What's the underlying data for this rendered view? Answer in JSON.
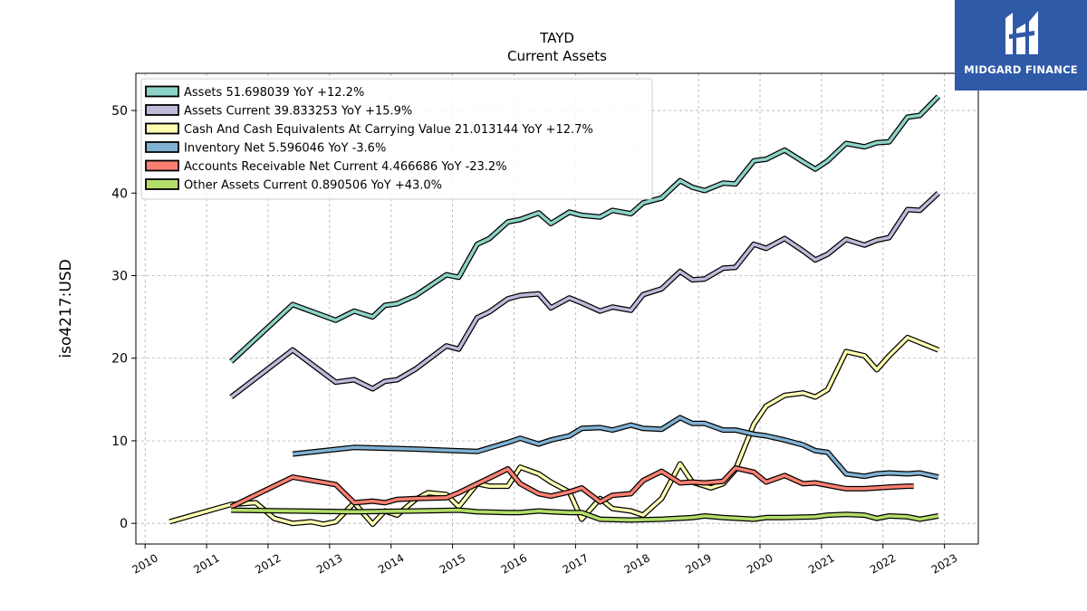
{
  "chart_data": {
    "type": "line",
    "title": "TAYD",
    "subtitle": "Current  Assets",
    "ylabel": "iso4217:USD",
    "xlim": [
      2009.85,
      2023.55
    ],
    "ylim": [
      -2.5,
      54.5
    ],
    "yticks": [
      0,
      10,
      20,
      30,
      40,
      50
    ],
    "xticks": [
      "2010",
      "2011",
      "2012",
      "2013",
      "2014",
      "2015",
      "2016",
      "2017",
      "2018",
      "2019",
      "2020",
      "2021",
      "2022",
      "2023"
    ],
    "grid": true,
    "legend_position": "top-left",
    "series": [
      {
        "name": "Assets",
        "legend": "Assets  51.698039 YoY +12.2%",
        "color": "#8dd3c7",
        "points": [
          [
            2011.4,
            19.6
          ],
          [
            2012.4,
            26.5
          ],
          [
            2013.1,
            24.6
          ],
          [
            2013.4,
            25.7
          ],
          [
            2013.7,
            25.0
          ],
          [
            2013.9,
            26.4
          ],
          [
            2014.1,
            26.6
          ],
          [
            2014.4,
            27.6
          ],
          [
            2014.9,
            30.1
          ],
          [
            2015.1,
            29.8
          ],
          [
            2015.4,
            33.8
          ],
          [
            2015.6,
            34.5
          ],
          [
            2015.9,
            36.5
          ],
          [
            2016.1,
            36.8
          ],
          [
            2016.4,
            37.6
          ],
          [
            2016.6,
            36.3
          ],
          [
            2016.9,
            37.7
          ],
          [
            2017.1,
            37.3
          ],
          [
            2017.4,
            37.1
          ],
          [
            2017.6,
            37.9
          ],
          [
            2017.9,
            37.5
          ],
          [
            2018.1,
            38.8
          ],
          [
            2018.4,
            39.4
          ],
          [
            2018.7,
            41.5
          ],
          [
            2018.9,
            40.7
          ],
          [
            2019.1,
            40.3
          ],
          [
            2019.4,
            41.2
          ],
          [
            2019.6,
            41.1
          ],
          [
            2019.9,
            43.9
          ],
          [
            2020.1,
            44.1
          ],
          [
            2020.4,
            45.2
          ],
          [
            2020.7,
            43.8
          ],
          [
            2020.9,
            42.9
          ],
          [
            2021.1,
            43.9
          ],
          [
            2021.4,
            46.0
          ],
          [
            2021.7,
            45.6
          ],
          [
            2021.9,
            46.1
          ],
          [
            2022.1,
            46.2
          ],
          [
            2022.4,
            49.2
          ],
          [
            2022.6,
            49.4
          ],
          [
            2022.9,
            51.7
          ]
        ]
      },
      {
        "name": "Assets Current",
        "legend": "Assets Current  39.833253 YoY +15.9%",
        "color": "#bebada",
        "points": [
          [
            2011.4,
            15.3
          ],
          [
            2012.4,
            21.0
          ],
          [
            2013.1,
            17.1
          ],
          [
            2013.4,
            17.4
          ],
          [
            2013.7,
            16.3
          ],
          [
            2013.9,
            17.2
          ],
          [
            2014.1,
            17.4
          ],
          [
            2014.4,
            18.7
          ],
          [
            2014.9,
            21.5
          ],
          [
            2015.1,
            21.1
          ],
          [
            2015.4,
            24.9
          ],
          [
            2015.6,
            25.6
          ],
          [
            2015.9,
            27.2
          ],
          [
            2016.1,
            27.6
          ],
          [
            2016.4,
            27.8
          ],
          [
            2016.6,
            26.1
          ],
          [
            2016.9,
            27.3
          ],
          [
            2017.1,
            26.7
          ],
          [
            2017.4,
            25.7
          ],
          [
            2017.6,
            26.2
          ],
          [
            2017.9,
            25.8
          ],
          [
            2018.1,
            27.7
          ],
          [
            2018.4,
            28.4
          ],
          [
            2018.7,
            30.5
          ],
          [
            2018.9,
            29.5
          ],
          [
            2019.1,
            29.6
          ],
          [
            2019.4,
            30.9
          ],
          [
            2019.6,
            31.0
          ],
          [
            2019.9,
            33.8
          ],
          [
            2020.1,
            33.3
          ],
          [
            2020.4,
            34.5
          ],
          [
            2020.7,
            33.0
          ],
          [
            2020.9,
            31.9
          ],
          [
            2021.1,
            32.6
          ],
          [
            2021.4,
            34.4
          ],
          [
            2021.7,
            33.7
          ],
          [
            2021.9,
            34.3
          ],
          [
            2022.1,
            34.6
          ],
          [
            2022.4,
            38.0
          ],
          [
            2022.6,
            37.9
          ],
          [
            2022.9,
            40.0
          ]
        ]
      },
      {
        "name": "Cash And Cash Equivalents At Carrying Value",
        "legend": "Cash And Cash Equivalents At Carrying Value  21.013144 YoY +12.7%",
        "color": "#ffffb3",
        "points": [
          [
            2010.4,
            0.2
          ],
          [
            2011.4,
            2.3
          ],
          [
            2011.8,
            2.5
          ],
          [
            2012.1,
            0.6
          ],
          [
            2012.4,
            0.0
          ],
          [
            2012.7,
            0.2
          ],
          [
            2012.9,
            -0.1
          ],
          [
            2013.1,
            0.2
          ],
          [
            2013.4,
            2.5
          ],
          [
            2013.7,
            -0.1
          ],
          [
            2013.9,
            1.5
          ],
          [
            2014.1,
            1.0
          ],
          [
            2014.4,
            2.9
          ],
          [
            2014.6,
            3.7
          ],
          [
            2014.9,
            3.5
          ],
          [
            2015.1,
            2.0
          ],
          [
            2015.4,
            4.8
          ],
          [
            2015.6,
            4.5
          ],
          [
            2015.9,
            4.5
          ],
          [
            2016.1,
            6.8
          ],
          [
            2016.4,
            6.0
          ],
          [
            2016.6,
            5.0
          ],
          [
            2016.9,
            3.8
          ],
          [
            2017.1,
            0.5
          ],
          [
            2017.4,
            3.0
          ],
          [
            2017.6,
            1.8
          ],
          [
            2017.9,
            1.5
          ],
          [
            2018.1,
            1.0
          ],
          [
            2018.4,
            3.0
          ],
          [
            2018.7,
            7.2
          ],
          [
            2018.9,
            5.0
          ],
          [
            2019.2,
            4.3
          ],
          [
            2019.4,
            4.8
          ],
          [
            2019.6,
            6.5
          ],
          [
            2019.9,
            12.0
          ],
          [
            2020.1,
            14.2
          ],
          [
            2020.4,
            15.5
          ],
          [
            2020.7,
            15.8
          ],
          [
            2020.9,
            15.3
          ],
          [
            2021.1,
            16.2
          ],
          [
            2021.4,
            20.8
          ],
          [
            2021.7,
            20.3
          ],
          [
            2021.9,
            18.6
          ],
          [
            2022.1,
            20.3
          ],
          [
            2022.4,
            22.5
          ],
          [
            2022.6,
            21.9
          ],
          [
            2022.9,
            21.0
          ]
        ]
      },
      {
        "name": "Inventory Net",
        "legend": "Inventory Net  5.596046 YoY -3.6%",
        "color": "#80b1d3",
        "points": [
          [
            2012.4,
            8.4
          ],
          [
            2013.4,
            9.2
          ],
          [
            2014.4,
            9.0
          ],
          [
            2015.4,
            8.7
          ],
          [
            2015.9,
            9.8
          ],
          [
            2016.1,
            10.3
          ],
          [
            2016.4,
            9.6
          ],
          [
            2016.6,
            10.1
          ],
          [
            2016.9,
            10.6
          ],
          [
            2017.1,
            11.5
          ],
          [
            2017.4,
            11.6
          ],
          [
            2017.6,
            11.3
          ],
          [
            2017.9,
            11.9
          ],
          [
            2018.1,
            11.5
          ],
          [
            2018.4,
            11.4
          ],
          [
            2018.7,
            12.8
          ],
          [
            2018.9,
            12.1
          ],
          [
            2019.1,
            12.1
          ],
          [
            2019.4,
            11.3
          ],
          [
            2019.6,
            11.3
          ],
          [
            2019.9,
            10.8
          ],
          [
            2020.1,
            10.6
          ],
          [
            2020.4,
            10.1
          ],
          [
            2020.7,
            9.5
          ],
          [
            2020.9,
            8.8
          ],
          [
            2021.1,
            8.6
          ],
          [
            2021.4,
            6.0
          ],
          [
            2021.7,
            5.7
          ],
          [
            2021.9,
            6.0
          ],
          [
            2022.1,
            6.1
          ],
          [
            2022.4,
            6.0
          ],
          [
            2022.6,
            6.1
          ],
          [
            2022.9,
            5.6
          ]
        ]
      },
      {
        "name": "Accounts Receivable Net Current",
        "legend": "Accounts Receivable Net Current  4.466686 YoY -23.2%",
        "color": "#fb8072",
        "points": [
          [
            2011.4,
            2.0
          ],
          [
            2012.4,
            5.6
          ],
          [
            2013.1,
            4.7
          ],
          [
            2013.4,
            2.5
          ],
          [
            2013.7,
            2.7
          ],
          [
            2013.9,
            2.5
          ],
          [
            2014.1,
            2.9
          ],
          [
            2014.4,
            3.0
          ],
          [
            2014.9,
            3.1
          ],
          [
            2015.1,
            3.7
          ],
          [
            2015.4,
            4.8
          ],
          [
            2015.6,
            5.5
          ],
          [
            2015.9,
            6.6
          ],
          [
            2016.1,
            4.8
          ],
          [
            2016.4,
            3.6
          ],
          [
            2016.6,
            3.3
          ],
          [
            2016.9,
            3.8
          ],
          [
            2017.1,
            4.3
          ],
          [
            2017.4,
            2.6
          ],
          [
            2017.6,
            3.4
          ],
          [
            2017.9,
            3.6
          ],
          [
            2018.1,
            5.2
          ],
          [
            2018.4,
            6.3
          ],
          [
            2018.7,
            4.9
          ],
          [
            2018.9,
            5.0
          ],
          [
            2019.1,
            4.9
          ],
          [
            2019.4,
            5.1
          ],
          [
            2019.6,
            6.7
          ],
          [
            2019.9,
            6.2
          ],
          [
            2020.1,
            5.0
          ],
          [
            2020.4,
            5.8
          ],
          [
            2020.7,
            4.8
          ],
          [
            2020.9,
            4.9
          ],
          [
            2021.1,
            4.6
          ],
          [
            2021.4,
            4.2
          ],
          [
            2021.7,
            4.2
          ],
          [
            2021.9,
            4.3
          ],
          [
            2022.1,
            4.4
          ],
          [
            2022.4,
            4.5
          ],
          [
            2022.5,
            4.5
          ]
        ]
      },
      {
        "name": "Other Assets Current",
        "legend": "Other Assets Current  0.890506 YoY +43.0%",
        "color": "#b3de69",
        "points": [
          [
            2011.4,
            1.6
          ],
          [
            2012.4,
            1.5
          ],
          [
            2013.4,
            1.4
          ],
          [
            2014.4,
            1.5
          ],
          [
            2015.1,
            1.6
          ],
          [
            2015.4,
            1.4
          ],
          [
            2015.9,
            1.3
          ],
          [
            2016.1,
            1.3
          ],
          [
            2016.4,
            1.5
          ],
          [
            2016.6,
            1.4
          ],
          [
            2016.9,
            1.3
          ],
          [
            2017.1,
            1.3
          ],
          [
            2017.4,
            0.5
          ],
          [
            2017.9,
            0.4
          ],
          [
            2018.4,
            0.5
          ],
          [
            2018.9,
            0.7
          ],
          [
            2019.1,
            0.9
          ],
          [
            2019.4,
            0.7
          ],
          [
            2019.9,
            0.5
          ],
          [
            2020.1,
            0.7
          ],
          [
            2020.4,
            0.7
          ],
          [
            2020.9,
            0.8
          ],
          [
            2021.1,
            1.0
          ],
          [
            2021.4,
            1.1
          ],
          [
            2021.7,
            1.0
          ],
          [
            2021.9,
            0.6
          ],
          [
            2022.1,
            0.9
          ],
          [
            2022.4,
            0.8
          ],
          [
            2022.6,
            0.5
          ],
          [
            2022.9,
            0.9
          ]
        ]
      }
    ]
  },
  "logo": {
    "text": "MIDGARD FINANCE",
    "color": "#2f5aa8"
  }
}
